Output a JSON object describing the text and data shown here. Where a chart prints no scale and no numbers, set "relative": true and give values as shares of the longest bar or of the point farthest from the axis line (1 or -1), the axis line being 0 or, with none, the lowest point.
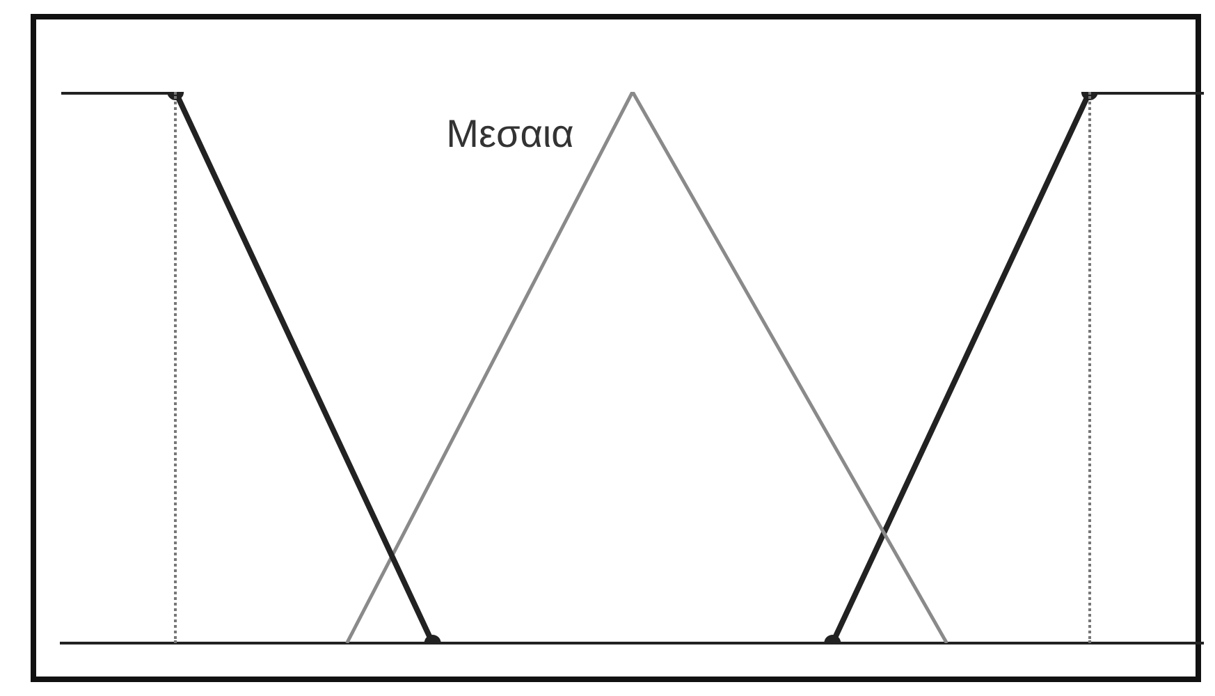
{
  "chart_data": {
    "type": "line",
    "relative": true,
    "tick_labels": false,
    "grid": false,
    "legend": false,
    "categories": [
      null,
      null,
      null,
      null,
      null,
      null,
      null,
      null,
      null,
      null,
      null,
      null,
      null,
      null,
      null,
      null,
      null,
      null,
      null,
      null,
      null,
      null,
      null,
      null,
      null,
      null,
      null,
      null,
      null,
      null,
      null,
      null,
      null,
      null,
      null,
      null,
      null,
      null,
      null,
      null,
      null
    ],
    "series": [
      {
        "color": "#222222",
        "marker": "circle",
        "values": [
          1,
          null,
          null,
          null,
          1,
          null,
          null,
          null,
          null,
          null,
          null,
          null,
          null,
          0,
          null,
          null,
          null,
          null,
          null,
          null,
          null,
          null,
          null,
          null,
          null,
          null,
          null,
          null,
          null,
          null,
          null,
          null,
          null,
          null,
          null,
          null,
          null,
          null,
          null,
          null,
          null
        ]
      },
      {
        "name": "Μεσαια",
        "color": "#8a8a8a",
        "marker": "none",
        "values": [
          null,
          null,
          null,
          null,
          null,
          null,
          null,
          null,
          null,
          null,
          0,
          null,
          null,
          null,
          null,
          null,
          null,
          null,
          null,
          null,
          1,
          null,
          null,
          null,
          null,
          null,
          null,
          null,
          null,
          null,
          null,
          0,
          null,
          null,
          null,
          null,
          null,
          null,
          null,
          null,
          null
        ]
      },
      {
        "color": "#222222",
        "marker": "circle",
        "values": [
          null,
          null,
          null,
          null,
          null,
          null,
          null,
          null,
          null,
          null,
          null,
          null,
          null,
          null,
          null,
          null,
          null,
          null,
          null,
          null,
          null,
          null,
          null,
          null,
          null,
          null,
          null,
          0,
          null,
          null,
          null,
          null,
          null,
          null,
          null,
          null,
          1,
          null,
          null,
          null,
          1
        ]
      }
    ]
  }
}
